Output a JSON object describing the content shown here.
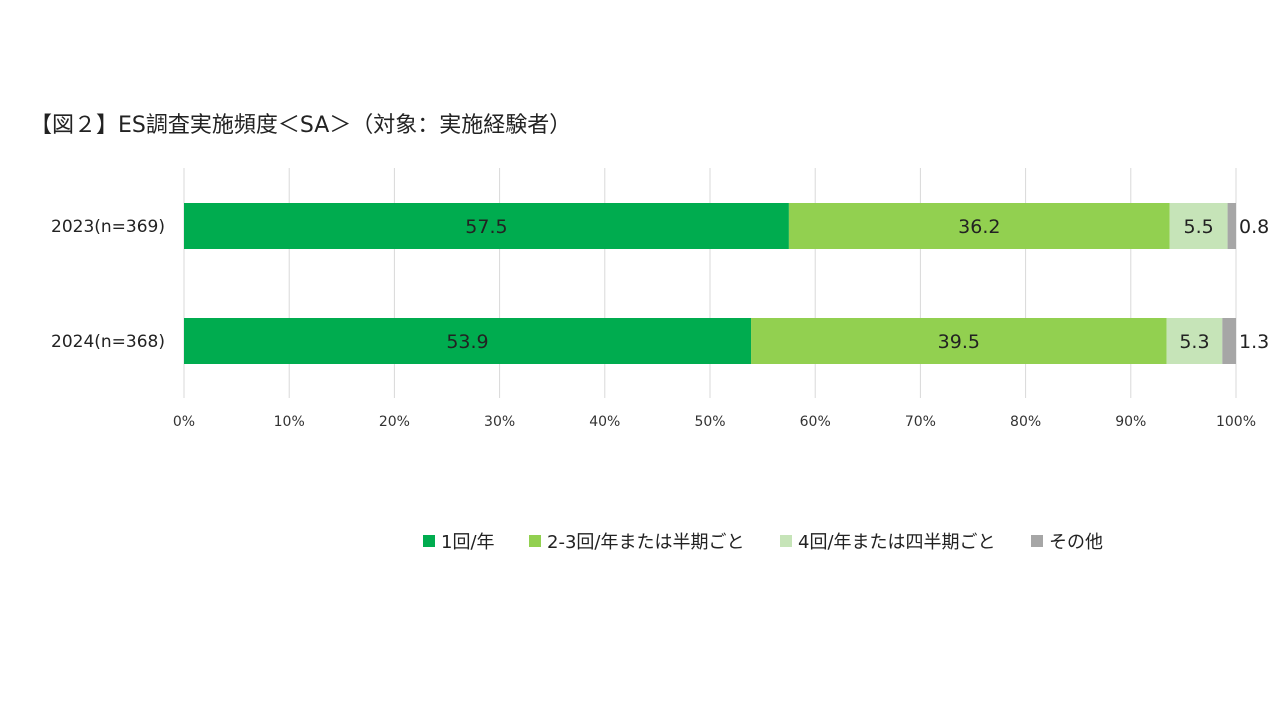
{
  "chart_data": {
    "type": "bar",
    "orientation": "horizontal",
    "stacked": true,
    "title": "【図２】ES調査実施頻度＜SA＞（対象：実施経験者）",
    "categories": [
      "2023(n=369)",
      "2024(n=368)"
    ],
    "series": [
      {
        "name": "1回/年",
        "values": [
          57.5,
          53.9
        ],
        "color": "#00ac4f"
      },
      {
        "name": "2-3回/年または半期ごと",
        "values": [
          36.2,
          39.5
        ],
        "color": "#92d050"
      },
      {
        "name": "4回/年または四半期ごと",
        "values": [
          5.5,
          5.3
        ],
        "color": "#c6e4b8"
      },
      {
        "name": "その他",
        "values": [
          0.8,
          1.3
        ],
        "color": "#a6a6a6"
      }
    ],
    "xlim": [
      0,
      100
    ],
    "xticks": [
      "0%",
      "10%",
      "20%",
      "30%",
      "40%",
      "50%",
      "60%",
      "70%",
      "80%",
      "90%",
      "100%"
    ],
    "xlabel": "",
    "ylabel": "",
    "grid": true,
    "legend_position": "bottom"
  }
}
